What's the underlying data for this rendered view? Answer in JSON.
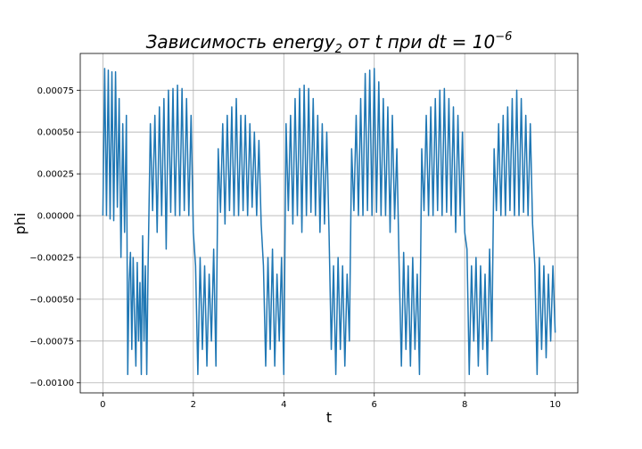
{
  "chart_data": {
    "type": "line",
    "title_main": "Зависимость energy",
    "title_sub": "2",
    "title_rest": " от t при dt = 10",
    "title_sup": "−6",
    "xlabel": "t",
    "ylabel": "phi",
    "xlim": [
      -0.5,
      10.5
    ],
    "ylim": [
      -0.00106,
      0.00097
    ],
    "x_ticks": [
      0,
      2,
      4,
      6,
      8,
      10
    ],
    "x_tick_labels": [
      "0",
      "2",
      "4",
      "6",
      "8",
      "10"
    ],
    "y_ticks": [
      -0.001,
      -0.00075,
      -0.0005,
      -0.00025,
      0,
      0.00025,
      0.0005,
      0.00075
    ],
    "y_tick_labels": [
      "−0.00100",
      "−0.00075",
      "−0.00050",
      "−0.00025",
      "0.00000",
      "0.00025",
      "0.00050",
      "0.00075"
    ],
    "grid": true,
    "line_color": "#1f77b4",
    "series": [
      {
        "x": [
          0,
          0.04,
          0.08,
          0.12,
          0.16,
          0.2,
          0.24,
          0.28,
          0.32,
          0.36,
          0.4,
          0.44,
          0.48,
          0.52,
          0.55,
          0.58,
          0.61,
          0.64,
          0.67,
          0.7,
          0.73,
          0.76,
          0.79,
          0.82,
          0.85,
          0.88,
          0.91,
          0.94,
          0.97,
          1.0,
          1.05,
          1.1,
          1.15,
          1.2,
          1.25,
          1.3,
          1.35,
          1.4,
          1.45,
          1.5,
          1.55,
          1.6,
          1.65,
          1.7,
          1.75,
          1.8,
          1.85,
          1.9,
          1.95,
          2.0,
          2.05,
          2.1,
          2.15,
          2.2,
          2.25,
          2.3,
          2.35,
          2.4,
          2.45,
          2.5,
          2.55,
          2.6,
          2.65,
          2.7,
          2.75,
          2.8,
          2.85,
          2.9,
          2.95,
          3.0,
          3.05,
          3.1,
          3.15,
          3.2,
          3.25,
          3.3,
          3.35,
          3.4,
          3.45,
          3.5,
          3.55,
          3.6,
          3.65,
          3.7,
          3.75,
          3.8,
          3.85,
          3.9,
          3.95,
          4.0,
          4.05,
          4.1,
          4.15,
          4.2,
          4.25,
          4.3,
          4.35,
          4.4,
          4.45,
          4.5,
          4.55,
          4.6,
          4.65,
          4.7,
          4.75,
          4.8,
          4.85,
          4.9,
          4.95,
          5.0,
          5.05,
          5.1,
          5.15,
          5.2,
          5.25,
          5.3,
          5.35,
          5.4,
          5.45,
          5.5,
          5.55,
          5.6,
          5.65,
          5.7,
          5.75,
          5.8,
          5.85,
          5.9,
          5.95,
          6.0,
          6.05,
          6.1,
          6.15,
          6.2,
          6.25,
          6.3,
          6.35,
          6.4,
          6.45,
          6.5,
          6.55,
          6.6,
          6.65,
          6.7,
          6.75,
          6.8,
          6.85,
          6.9,
          6.95,
          7.0,
          7.05,
          7.1,
          7.15,
          7.2,
          7.25,
          7.3,
          7.35,
          7.4,
          7.45,
          7.5,
          7.55,
          7.6,
          7.65,
          7.7,
          7.75,
          7.8,
          7.85,
          7.9,
          7.95,
          8.0,
          8.05,
          8.1,
          8.15,
          8.2,
          8.25,
          8.3,
          8.35,
          8.4,
          8.45,
          8.5,
          8.55,
          8.6,
          8.65,
          8.7,
          8.75,
          8.8,
          8.85,
          8.9,
          8.95,
          9.0,
          9.05,
          9.1,
          9.15,
          9.2,
          9.25,
          9.3,
          9.35,
          9.4,
          9.45,
          9.5,
          9.55,
          9.6,
          9.65,
          9.7,
          9.75,
          9.8,
          9.85,
          9.9,
          9.95,
          10.0
        ],
        "y": [
          0,
          0.00088,
          0,
          0.00087,
          -2e-05,
          0.00086,
          -3e-05,
          0.00086,
          5e-05,
          0.0007,
          -0.00025,
          0.00055,
          -0.0001,
          0.0006,
          -0.00095,
          -0.0004,
          -0.00022,
          -0.0008,
          -0.00025,
          -0.0006,
          -0.0009,
          -0.00028,
          -0.00075,
          -0.0004,
          -0.00095,
          -0.00012,
          -0.00075,
          -0.0003,
          -0.00095,
          -0.0003,
          0.00055,
          3e-05,
          0.0006,
          -0.0001,
          0.00065,
          0.0,
          0.0007,
          -0.0002,
          0.00075,
          2e-05,
          0.00076,
          0.0,
          0.00078,
          0.0,
          0.00076,
          3e-05,
          0.0007,
          0.0,
          0.0006,
          -0.0001,
          -0.0003,
          -0.00095,
          -0.00025,
          -0.0008,
          -0.0003,
          -0.0009,
          -0.00035,
          -0.00075,
          -0.0002,
          -0.0009,
          0.0004,
          2e-05,
          0.00055,
          -5e-05,
          0.0006,
          3e-05,
          0.00065,
          0.0,
          0.0007,
          0.0,
          0.0006,
          3e-05,
          0.0006,
          0.0,
          0.00055,
          5e-05,
          0.0005,
          0.0,
          0.00045,
          -5e-05,
          -0.0003,
          -0.0009,
          -0.00025,
          -0.0008,
          -0.0002,
          -0.0009,
          -0.00035,
          -0.00075,
          -0.00025,
          -0.00095,
          0.00055,
          3e-05,
          0.0006,
          -5e-05,
          0.0007,
          0.0,
          0.00076,
          -0.0001,
          0.00078,
          0.0,
          0.00076,
          2e-05,
          0.0007,
          0.0,
          0.0006,
          -0.0001,
          0.00055,
          -5e-05,
          0.0005,
          -0.0001,
          -0.0008,
          -0.0003,
          -0.00095,
          -0.00025,
          -0.0008,
          -0.0003,
          -0.0009,
          -0.00035,
          -0.00075,
          0.0004,
          3e-05,
          0.0006,
          0.0,
          0.0007,
          0.0,
          0.00085,
          3e-05,
          0.00087,
          0.0,
          0.00088,
          2e-05,
          0.0008,
          0.0,
          0.0007,
          0.0,
          0.00065,
          -0.0001,
          0.0006,
          -2e-05,
          0.0004,
          -0.0003,
          -0.0009,
          -0.00022,
          -0.0008,
          -0.0003,
          -0.0009,
          -0.00025,
          -0.0008,
          -0.00035,
          -0.00095,
          0.0004,
          3e-05,
          0.0006,
          0.0,
          0.00065,
          0.0,
          0.0007,
          3e-05,
          0.00075,
          0.0,
          0.00076,
          2e-05,
          0.0007,
          0.0,
          0.00065,
          -0.0001,
          0.0006,
          0.0,
          0.0005,
          -0.0001,
          -0.0002,
          -0.00095,
          -0.0003,
          -0.00075,
          -0.00025,
          -0.0009,
          -0.0003,
          -0.0008,
          -0.00035,
          -0.00095,
          -0.0002,
          -0.00075,
          0.0004,
          3e-05,
          0.00055,
          0.0,
          0.0006,
          0.0,
          0.00065,
          3e-05,
          0.0007,
          0.0,
          0.00075,
          0.0,
          0.0007,
          2e-05,
          0.0006,
          0.0,
          0.00055,
          -5e-05,
          -0.0003,
          -0.00095,
          -0.00025,
          -0.0008,
          -0.0003,
          -0.00085,
          -0.00035,
          -0.00075,
          -0.0003,
          -0.0007
        ]
      }
    ]
  }
}
